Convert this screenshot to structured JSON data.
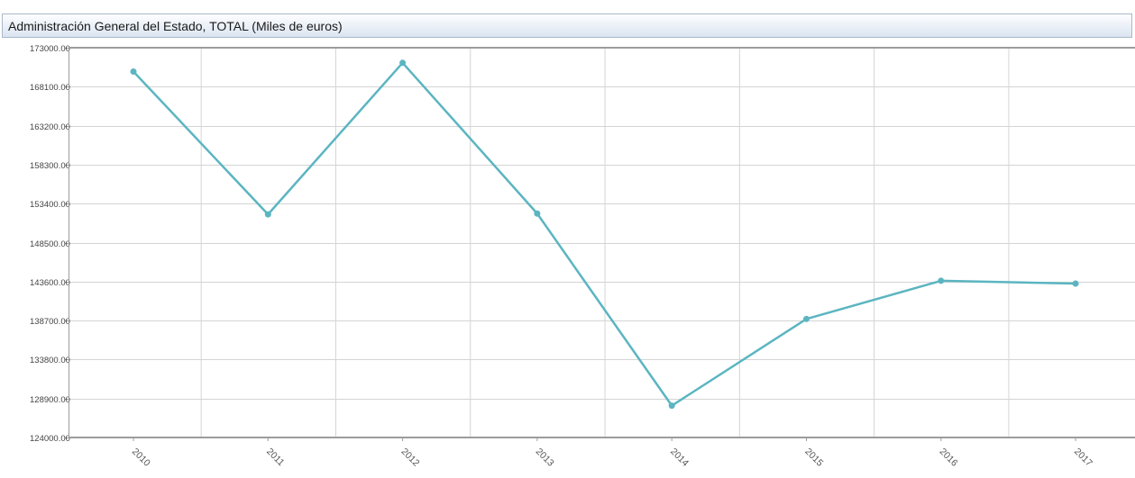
{
  "chart_data": {
    "type": "line",
    "title": "Administración General del Estado, TOTAL (Miles de euros)",
    "xlabel": "",
    "ylabel": "",
    "categories": [
      "2010",
      "2011",
      "2012",
      "2013",
      "2014",
      "2015",
      "2016",
      "2017"
    ],
    "series": [
      {
        "color": "#5bb5c1",
        "values": [
          170000,
          152050,
          171100,
          152150,
          128000,
          138900,
          143700,
          143350
        ]
      }
    ],
    "ylim": [
      124000,
      173000
    ],
    "yticks": [
      "124000.00",
      "128900.00",
      "133800.00",
      "138700.00",
      "143600.00",
      "148500.00",
      "153400.00",
      "158300.00",
      "163200.00",
      "168100.00",
      "173000.00"
    ],
    "grid": true,
    "legend": "none",
    "colors": {
      "grid": "#d4d4d4",
      "axis": "#9c9c9c"
    }
  }
}
